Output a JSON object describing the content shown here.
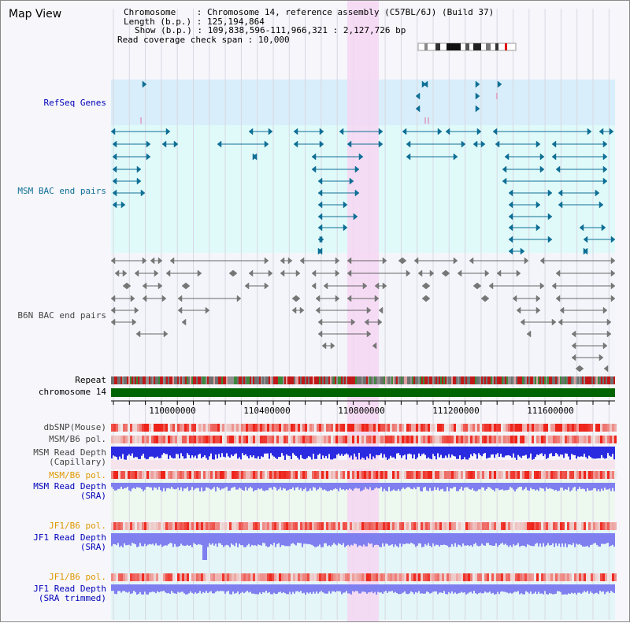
{
  "title": "Map View",
  "info": {
    "chromosome_label": "Chromosome",
    "chromosome_value": "Chromosome 14, reference assembly (C57BL/6J) (Build 37)",
    "length_label": "Length (b.p.)",
    "length_value": "125,194,864",
    "show_label": "Show (b.p.)",
    "show_value": "109,838,596-111,966,321 : 2,127,726 bp",
    "span_label": "Read coverage check span",
    "span_value": "10,000"
  },
  "tracks": {
    "refseq": "RefSeq Genes",
    "msm_bac": "MSM BAC end pairs",
    "b6n_bac": "B6N BAC end pairs",
    "repeat": "Repeat",
    "chromosome": "chromosome 14",
    "dbsnp": "dbSNP(Mouse)",
    "msm_b6_pol": "MSM/B6 pol.",
    "msm_depth_cap": "MSM Read Depth\n(Capillary)",
    "msm_b6_pol2": "MSM/B6 pol.",
    "msm_depth_sra": "MSM Read Depth\n(SRA)",
    "jf1_b6_pol": "JF1/B6 pol.",
    "jf1_depth_sra": "JF1 Read Depth\n(SRA)",
    "jf1_b6_pol2": "JF1/B6 pol.",
    "jf1_depth_trim": "JF1 Read Depth\n(SRA trimmed)"
  },
  "axis": {
    "ticks": [
      "110000000",
      "110400000",
      "110800000",
      "111200000",
      "111600000"
    ]
  },
  "colors": {
    "refseq_bg": "#d8eefa",
    "bac_bg": "#e0fafa",
    "highlight": "#f6d6f2",
    "chromosome": "#006400",
    "depth_blue": "#2a2ae0",
    "depth_light": "#7f7ff0",
    "teal_feature": "#0f6f95",
    "gray_feature": "#666666"
  }
}
